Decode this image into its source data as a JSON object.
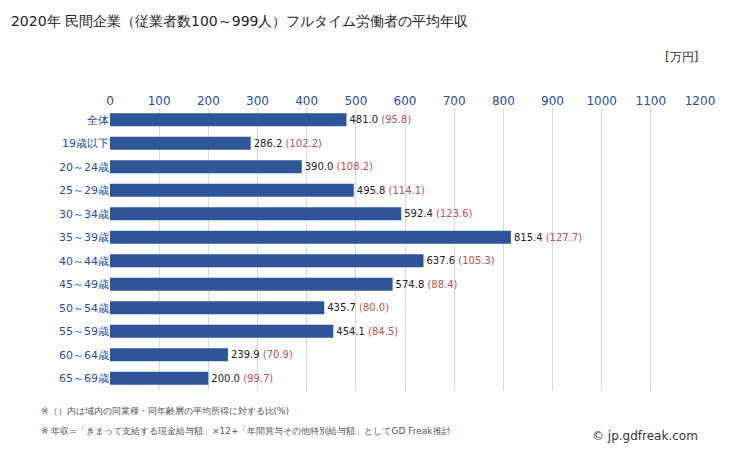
{
  "chart_data": {
    "type": "bar",
    "orientation": "horizontal",
    "title": "2020年 民間企業（従業者数100～999人）フルタイム労働者の平均年収",
    "xlabel": "[万円]",
    "categories": [
      "全体",
      "19歳以下",
      "20～24歳",
      "25～29歳",
      "30～34歳",
      "35～39歳",
      "40～44歳",
      "45～49歳",
      "50～54歳",
      "55～59歳",
      "60～64歳",
      "65～69歳"
    ],
    "values": [
      481.0,
      286.2,
      390.0,
      495.8,
      592.4,
      815.4,
      637.6,
      574.8,
      435.7,
      454.1,
      239.9,
      200.0
    ],
    "value_labels": [
      "481.0",
      "286.2",
      "390.0",
      "495.8",
      "592.4",
      "815.4",
      "637.6",
      "574.8",
      "435.7",
      "454.1",
      "239.9",
      "200.0"
    ],
    "ratios": [
      95.8,
      102.2,
      108.2,
      114.1,
      123.6,
      127.7,
      105.3,
      88.4,
      80.0,
      84.5,
      70.9,
      99.7
    ],
    "ratio_labels": [
      "(95.8)",
      "(102.2)",
      "(108.2)",
      "(114.1)",
      "(123.6)",
      "(127.7)",
      "(105.3)",
      "(88.4)",
      "(80.0)",
      "(84.5)",
      "(70.9)",
      "(99.7)"
    ],
    "color": "#2e5597",
    "data_labels": true,
    "xlim": [
      0,
      1200
    ],
    "xticks": [
      0,
      100,
      200,
      300,
      400,
      500,
      600,
      700,
      800,
      900,
      1000,
      1100,
      1200
    ],
    "grid": true,
    "notes": [
      "※（）内は域内の同業種・同年齢層の平均所得に対する比(%)",
      "※ 年収=「きまって支給する現金給与額」×12+「年間賞与その他特別給与額」としてGD Freak推計"
    ],
    "source": "© jp.gdfreak.com"
  }
}
